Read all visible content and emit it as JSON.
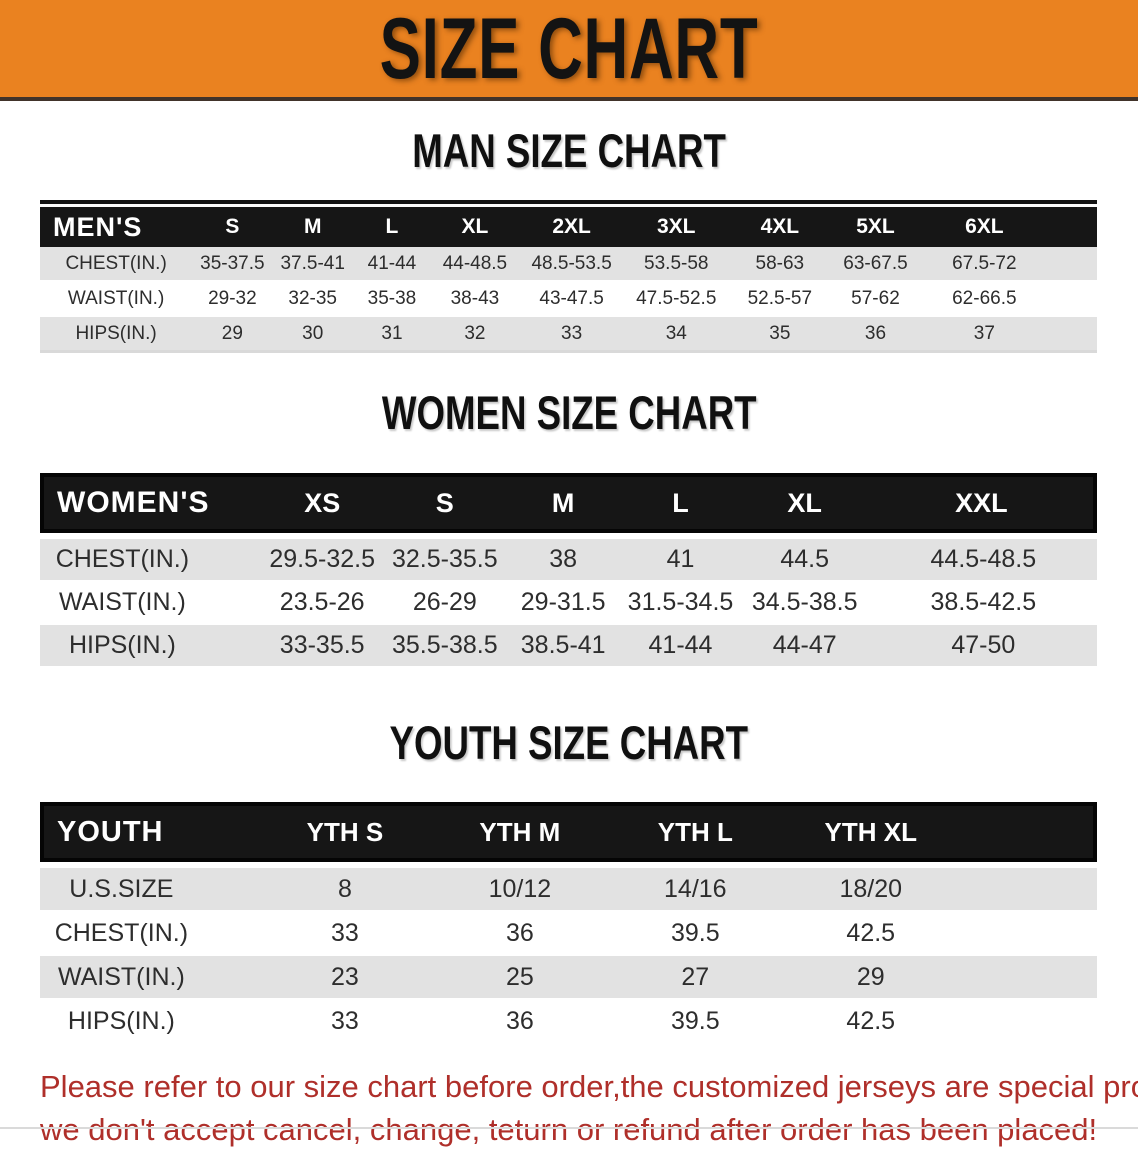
{
  "banner": {
    "title": "SIZE CHART"
  },
  "colors": {
    "banner_bg": "#EA8220",
    "header_bar": "#161616",
    "row_stripe": "#E2E2E2",
    "footer_red": "#AF2F2A"
  },
  "sections": [
    {
      "title": "MAN SIZE CHART",
      "table": {
        "corner_label": "MEN'S",
        "columns": [
          "S",
          "M",
          "L",
          "XL",
          "2XL",
          "3XL",
          "4XL",
          "5XL",
          "6XL"
        ],
        "rows": [
          {
            "label": "CHEST(IN.)",
            "values": [
              "35-37.5",
              "37.5-41",
              "41-44",
              "44-48.5",
              "48.5-53.5",
              "53.5-58",
              "58-63",
              "63-67.5",
              "67.5-72"
            ]
          },
          {
            "label": "WAIST(IN.)",
            "values": [
              "29-32",
              "32-35",
              "35-38",
              "38-43",
              "43-47.5",
              "47.5-52.5",
              "52.5-57",
              "57-62",
              "62-66.5"
            ]
          },
          {
            "label": "HIPS(IN.)",
            "values": [
              "29",
              "30",
              "31",
              "32",
              "33",
              "34",
              "35",
              "36",
              "37"
            ]
          }
        ]
      }
    },
    {
      "title": "WOMEN SIZE CHART",
      "table": {
        "corner_label": "WOMEN'S",
        "columns": [
          "XS",
          "S",
          "M",
          "L",
          "XL",
          "XXL"
        ],
        "rows": [
          {
            "label": "CHEST(IN.)",
            "values": [
              "29.5-32.5",
              "32.5-35.5",
              "38",
              "41",
              "44.5",
              "44.5-48.5"
            ]
          },
          {
            "label": "WAIST(IN.)",
            "values": [
              "23.5-26",
              "26-29",
              "29-31.5",
              "31.5-34.5",
              "34.5-38.5",
              "38.5-42.5"
            ]
          },
          {
            "label": "HIPS(IN.)",
            "values": [
              "33-35.5",
              "35.5-38.5",
              "38.5-41",
              "41-44",
              "44-47",
              "47-50"
            ]
          }
        ]
      }
    },
    {
      "title": "YOUTH SIZE CHART",
      "table": {
        "corner_label": "YOUTH",
        "columns": [
          "YTH S",
          "YTH M",
          "YTH L",
          "YTH XL"
        ],
        "rows": [
          {
            "label": "U.S.SIZE",
            "values": [
              "8",
              "10/12",
              "14/16",
              "18/20"
            ]
          },
          {
            "label": "CHEST(IN.)",
            "values": [
              "33",
              "36",
              "39.5",
              "42.5"
            ]
          },
          {
            "label": "WAIST(IN.)",
            "values": [
              "23",
              "25",
              "27",
              "29"
            ]
          },
          {
            "label": "HIPS(IN.)",
            "values": [
              "33",
              "36",
              "39.5",
              "42.5"
            ]
          }
        ]
      }
    }
  ],
  "footer": {
    "line1": "Please refer to our size chart before order,the customized jerseys are special products,",
    "line2": "we don't accept cancel, change, teturn or refund after order has been placed!"
  }
}
